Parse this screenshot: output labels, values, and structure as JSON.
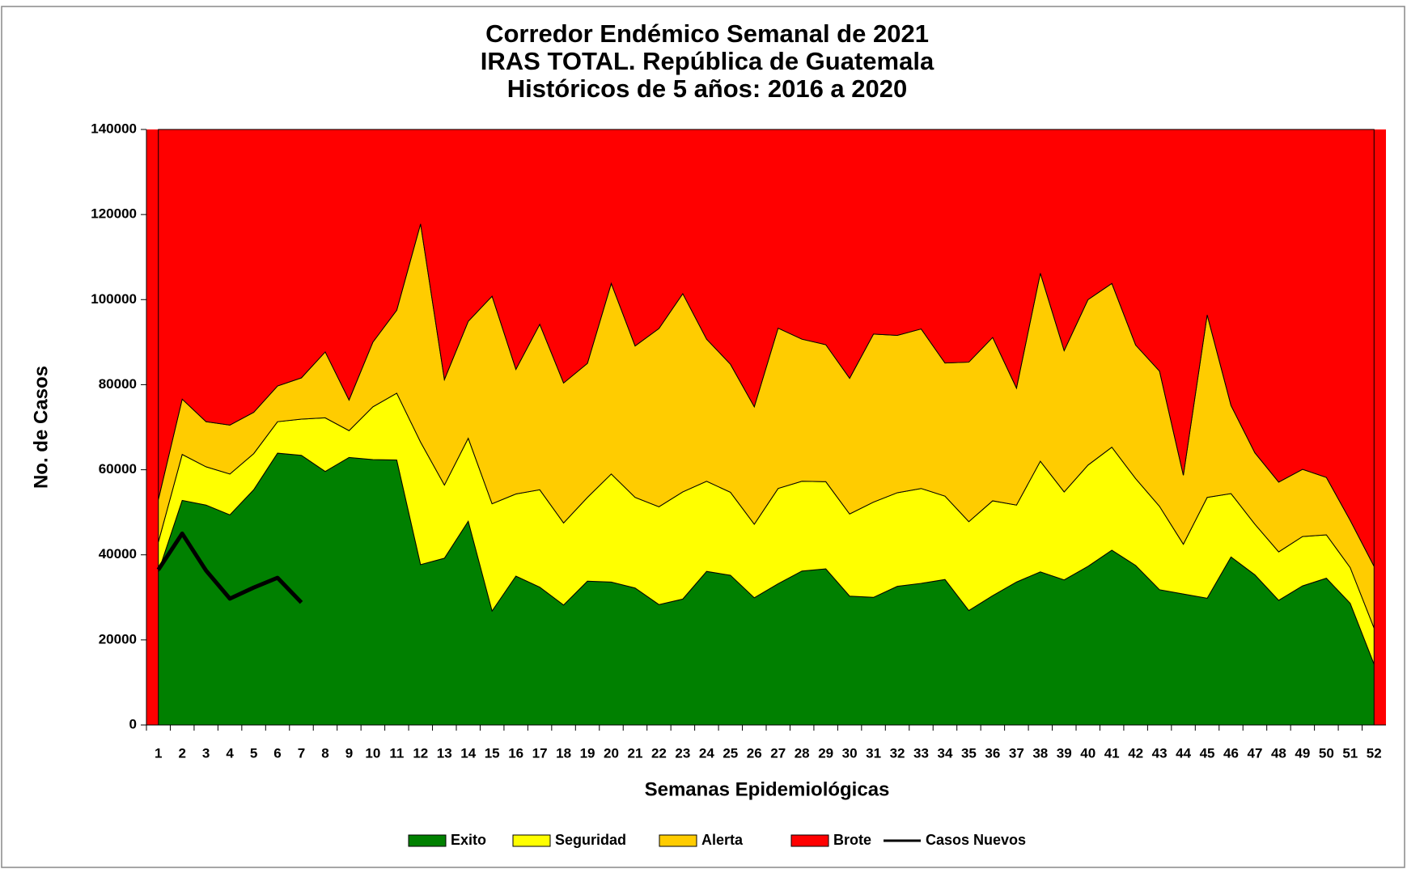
{
  "chart_data": {
    "type": "stacked_area",
    "title": [
      "Corredor Endémico Semanal de 2021",
      "IRAS TOTAL.  República de Guatemala",
      "Históricos de 5 años: 2016 a 2020"
    ],
    "x_label": "Semanas Epidemiológicas",
    "y_label": "No. de Casos",
    "categories": [
      "1",
      "2",
      "3",
      "4",
      "5",
      "6",
      "7",
      "8",
      "9",
      "10",
      "11",
      "12",
      "13",
      "14",
      "15",
      "16",
      "17",
      "18",
      "19",
      "20",
      "21",
      "22",
      "23",
      "24",
      "25",
      "26",
      "27",
      "28",
      "29",
      "30",
      "31",
      "32",
      "33",
      "34",
      "35",
      "36",
      "37",
      "38",
      "39",
      "40",
      "41",
      "42",
      "43",
      "44",
      "45",
      "46",
      "47",
      "48",
      "49",
      "50",
      "51",
      "52"
    ],
    "series": [
      {
        "name": "Exito",
        "color": "#008000",
        "values": [
          36000,
          52800,
          51700,
          49400,
          55300,
          63900,
          63400,
          59600,
          62900,
          62400,
          62300,
          37700,
          39200,
          47900,
          26800,
          35000,
          32400,
          28200,
          33800,
          33600,
          32200,
          28300,
          29600,
          36100,
          35200,
          29900,
          33200,
          36200,
          36700,
          30300,
          30000,
          32600,
          33300,
          34200,
          26900,
          30400,
          33600,
          36000,
          34100,
          37300,
          41100,
          37500,
          31800,
          30800,
          29800,
          39500,
          35300,
          29300,
          32700,
          34500,
          28600,
          14300
        ]
      },
      {
        "name": "Seguridad",
        "color": "#ffff00",
        "values": [
          7000,
          10800,
          9000,
          9600,
          8500,
          7400,
          8500,
          12600,
          6300,
          12400,
          15700,
          28800,
          17200,
          19500,
          25200,
          19300,
          22900,
          19300,
          19700,
          25400,
          21300,
          23000,
          25200,
          21200,
          19500,
          17300,
          22400,
          21100,
          20500,
          19300,
          22400,
          22000,
          22300,
          19600,
          20900,
          22300,
          18100,
          26000,
          20700,
          23800,
          24200,
          20400,
          19600,
          11700,
          23700,
          14900,
          11900,
          11400,
          11600,
          10200,
          8400,
          8500
        ]
      },
      {
        "name": "Alerta",
        "color": "#ffcc00",
        "values": [
          10000,
          13000,
          10600,
          11500,
          9700,
          8400,
          9700,
          15500,
          7200,
          15200,
          19500,
          51300,
          24800,
          27500,
          48800,
          29300,
          38900,
          32900,
          31500,
          44800,
          35600,
          41900,
          46600,
          33400,
          30100,
          27600,
          37700,
          33400,
          32200,
          31900,
          39500,
          37000,
          37500,
          31300,
          37500,
          38400,
          27500,
          44200,
          33200,
          38900,
          38500,
          31400,
          31800,
          16200,
          42900,
          20700,
          16800,
          16400,
          15800,
          13500,
          11100,
          14500
        ]
      },
      {
        "name": "Brote",
        "color": "#ff0000",
        "values": [
          87000,
          63400,
          68700,
          69500,
          66500,
          60300,
          58400,
          52300,
          63600,
          50000,
          42500,
          22200,
          58800,
          45100,
          39200,
          56400,
          45800,
          59600,
          55000,
          36200,
          50900,
          46800,
          38600,
          49300,
          55200,
          65200,
          46700,
          49300,
          50600,
          58500,
          48100,
          48400,
          46900,
          54900,
          54700,
          48900,
          60800,
          33800,
          52000,
          40000,
          36200,
          50700,
          56800,
          81300,
          43600,
          64900,
          76000,
          82900,
          79900,
          81800,
          91900,
          102700
        ]
      },
      {
        "name": "Casos Nuevos",
        "type": "line",
        "color": "#000000",
        "values": [
          36500,
          45000,
          36300,
          29700,
          32300,
          34600,
          28800,
          null,
          null,
          null,
          null,
          null,
          null,
          null,
          null,
          null,
          null,
          null,
          null,
          null,
          null,
          null,
          null,
          null,
          null,
          null,
          null,
          null,
          null,
          null,
          null,
          null,
          null,
          null,
          null,
          null,
          null,
          null,
          null,
          null,
          null,
          null,
          null,
          null,
          null,
          null,
          null,
          null,
          null,
          null,
          null,
          null
        ]
      }
    ],
    "ylim": [
      0,
      140000
    ],
    "yticks": [
      0,
      20000,
      40000,
      60000,
      80000,
      100000,
      120000,
      140000
    ],
    "legend": "bottom"
  }
}
